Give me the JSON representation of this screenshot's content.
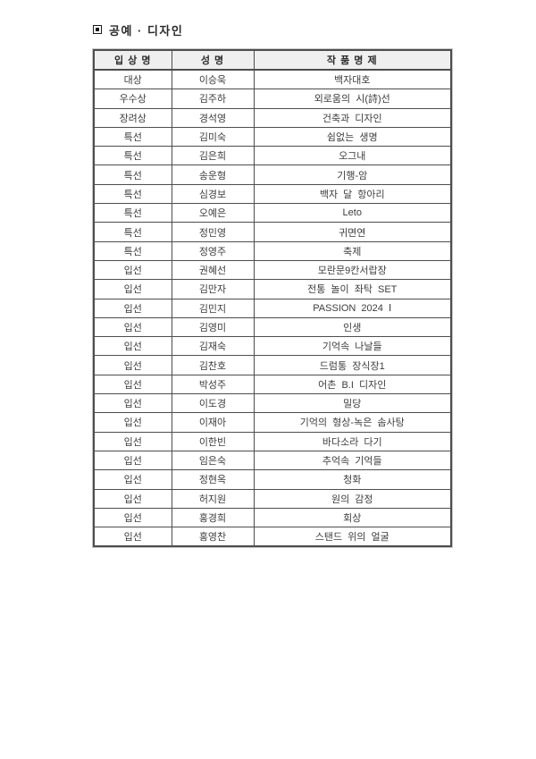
{
  "section": {
    "title": "공예 · 디자인",
    "bullet_icon": "filled-square-in-square"
  },
  "colors": {
    "award_red": "#e0392f",
    "award_blue": "#4a49c9",
    "text": "#3d3d3d",
    "border": "#4d4d4d",
    "header_bg": "#efefef"
  },
  "table": {
    "headers": [
      "입 상 명",
      "성 명",
      "작 품 명 제"
    ],
    "rows": [
      {
        "award": "대상",
        "award_style": "red",
        "name": "이승욱",
        "work": "백자대호"
      },
      {
        "award": "우수상",
        "award_style": "red",
        "name": "김주하",
        "work": "외로움의 시(詩)선"
      },
      {
        "award": "장려상",
        "award_style": "red",
        "name": "경석영",
        "work": "건축과 디자인"
      },
      {
        "award": "특선",
        "award_style": "blue",
        "name": "김미숙",
        "work": "쉼없는 생명"
      },
      {
        "award": "특선",
        "award_style": "blue",
        "name": "김은희",
        "work": "오그내"
      },
      {
        "award": "특선",
        "award_style": "blue",
        "name": "송운형",
        "work": "기행-암"
      },
      {
        "award": "특선",
        "award_style": "blue",
        "name": "심경보",
        "work": "백자 달 항아리"
      },
      {
        "award": "특선",
        "award_style": "blue",
        "name": "오예은",
        "work": "Leto"
      },
      {
        "award": "특선",
        "award_style": "blue",
        "name": "정민영",
        "work": "귀면연"
      },
      {
        "award": "특선",
        "award_style": "blue",
        "name": "정영주",
        "work": "축제"
      },
      {
        "award": "입선",
        "award_style": "black",
        "name": "권혜선",
        "work": "모란문9칸서랍장"
      },
      {
        "award": "입선",
        "award_style": "black",
        "name": "김만자",
        "work": "전통 놀이 좌탁 SET"
      },
      {
        "award": "입선",
        "award_style": "black",
        "name": "김민지",
        "work": "PASSION 2024 Ⅰ"
      },
      {
        "award": "입선",
        "award_style": "black",
        "name": "김영미",
        "work": "인생"
      },
      {
        "award": "입선",
        "award_style": "black",
        "name": "김재숙",
        "work": "기억속 나날들"
      },
      {
        "award": "입선",
        "award_style": "black",
        "name": "김찬호",
        "work": "드럼통 장식장1"
      },
      {
        "award": "입선",
        "award_style": "black",
        "name": "박성주",
        "work": "어촌 B.I 디자인"
      },
      {
        "award": "입선",
        "award_style": "black",
        "name": "이도경",
        "work": "밀당"
      },
      {
        "award": "입선",
        "award_style": "black",
        "name": "이재아",
        "work": "기억의 형상-녹은 솜사탕"
      },
      {
        "award": "입선",
        "award_style": "black",
        "name": "이한빈",
        "work": "바다소라 다기"
      },
      {
        "award": "입선",
        "award_style": "black",
        "name": "임은숙",
        "work": "추억속 기억들"
      },
      {
        "award": "입선",
        "award_style": "black",
        "name": "정현옥",
        "work": "청화"
      },
      {
        "award": "입선",
        "award_style": "black",
        "name": "허지원",
        "work": "원의 감정"
      },
      {
        "award": "입선",
        "award_style": "black",
        "name": "홍경희",
        "work": "회상"
      },
      {
        "award": "입선",
        "award_style": "black",
        "name": "홍영찬",
        "work": "스탠드 위의 얼굴"
      }
    ]
  }
}
